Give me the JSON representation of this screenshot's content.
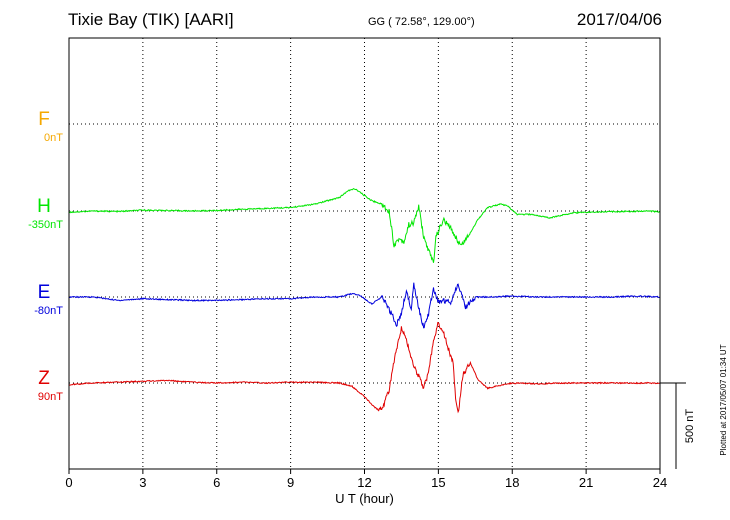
{
  "header": {
    "title": "Tixie Bay (TIK)  [AARI]",
    "coords": "GG ( 72.58°, 129.00°)",
    "date": "2017/04/06"
  },
  "footer": {
    "plotted": "Plotted at 2017/05/07 01:34 UT"
  },
  "chart_data": {
    "type": "line",
    "xlabel": "U T (hour)",
    "xlim": [
      0,
      24
    ],
    "xticks": [
      0,
      3,
      6,
      9,
      12,
      15,
      18,
      21,
      24
    ],
    "grid": true,
    "scale_bar": {
      "label": "500 nT",
      "value_nT": 500
    },
    "series": [
      {
        "name": "F",
        "baseline": "0nT",
        "color": "#f5a800",
        "x": [],
        "y": []
      },
      {
        "name": "H",
        "baseline": "-350nT",
        "color": "#00e600",
        "x": [
          0,
          1,
          2,
          3,
          4,
          5,
          6,
          7,
          8,
          9,
          10,
          10.5,
          11,
          11.3,
          11.6,
          11.9,
          12.3,
          12.7,
          13.0,
          13.2,
          13.4,
          13.6,
          13.8,
          14.0,
          14.2,
          14.4,
          14.6,
          14.8,
          14.9,
          15.2,
          15.5,
          15.9,
          16.2,
          16.6,
          17.0,
          17.5,
          17.8,
          18.2,
          18.8,
          19.5,
          20.5,
          21.5,
          22.5,
          23.5,
          24
        ],
        "y": [
          -7,
          0,
          -3,
          5,
          3,
          0,
          3,
          10,
          15,
          20,
          40,
          60,
          80,
          115,
          130,
          100,
          60,
          40,
          0,
          -200,
          -160,
          -180,
          -80,
          -70,
          30,
          -150,
          -230,
          -300,
          -150,
          -50,
          -100,
          -200,
          -150,
          -50,
          20,
          40,
          30,
          -20,
          -20,
          -40,
          -10,
          -5,
          -3,
          0,
          -5
        ]
      },
      {
        "name": "E",
        "baseline": "-80nT",
        "color": "#0000dc",
        "x": [
          0,
          1,
          2,
          3,
          4,
          5,
          6,
          7,
          8,
          9,
          10,
          11,
          11.5,
          11.8,
          12.0,
          12.3,
          12.7,
          13.0,
          13.3,
          13.5,
          13.7,
          13.9,
          14.0,
          14.2,
          14.4,
          14.6,
          14.8,
          15.0,
          15.2,
          15.5,
          15.8,
          16.1,
          16.5,
          17.0,
          18,
          19,
          20,
          21,
          22,
          23,
          24
        ],
        "y": [
          0,
          0,
          -20,
          -10,
          -15,
          -20,
          -20,
          -15,
          -10,
          -10,
          0,
          0,
          20,
          10,
          -10,
          -40,
          0,
          -70,
          -160,
          -100,
          40,
          -80,
          80,
          -60,
          -180,
          -100,
          50,
          -30,
          -20,
          -30,
          80,
          -60,
          0,
          0,
          5,
          0,
          0,
          0,
          0,
          5,
          0
        ]
      },
      {
        "name": "Z",
        "baseline": "90nT",
        "color": "#e00000",
        "x": [
          0,
          1,
          2,
          3,
          4,
          5,
          6,
          7,
          8,
          9,
          10,
          11,
          11.5,
          12.0,
          12.4,
          12.6,
          12.8,
          13.0,
          13.3,
          13.5,
          13.7,
          14.0,
          14.2,
          14.4,
          14.6,
          14.8,
          15.0,
          15.2,
          15.4,
          15.6,
          15.7,
          15.8,
          16.0,
          16.3,
          16.6,
          17.0,
          18,
          19,
          20,
          21,
          22,
          23,
          24
        ],
        "y": [
          -10,
          0,
          5,
          10,
          15,
          5,
          0,
          5,
          0,
          5,
          5,
          0,
          -20,
          -80,
          -140,
          -160,
          -120,
          -40,
          200,
          320,
          250,
          100,
          40,
          -30,
          60,
          250,
          350,
          300,
          200,
          120,
          -100,
          -180,
          50,
          120,
          20,
          -30,
          0,
          -5,
          0,
          0,
          0,
          0,
          0
        ]
      }
    ]
  }
}
